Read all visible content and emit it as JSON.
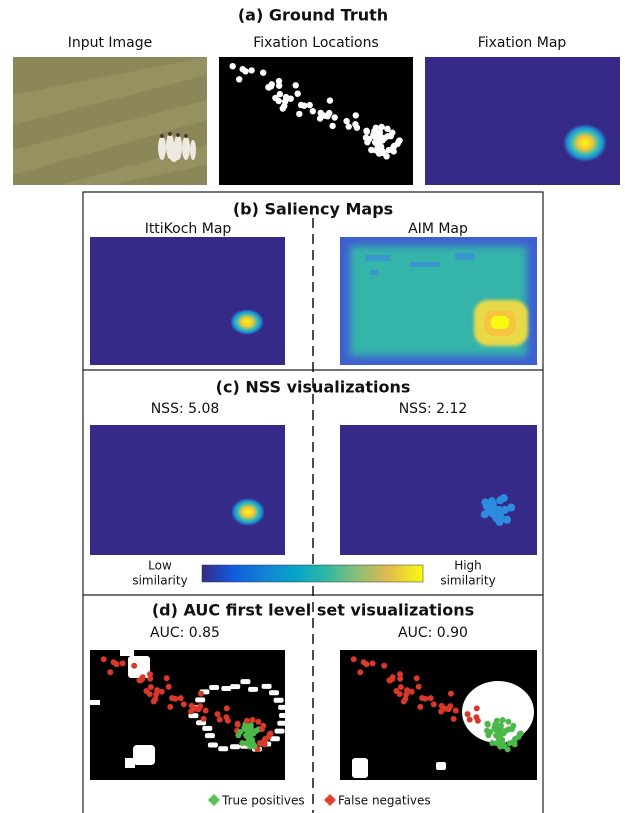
{
  "sections": [
    {
      "title": "(a) Ground Truth",
      "panels": [
        "Input Image",
        "Fixation Locations",
        "Fixation Map"
      ]
    },
    {
      "title": "(b) Saliency Maps",
      "panels": [
        "IttiKoch Map",
        "AIM Map"
      ]
    },
    {
      "title": "(c) NSS visualizations",
      "panels": [
        "NSS: 5.08",
        "NSS: 2.12"
      ],
      "colorbar": {
        "low": [
          "Low",
          "similarity"
        ],
        "high": [
          "High",
          "similarity"
        ]
      }
    },
    {
      "title": "(d) AUC first level set visualizations",
      "panels": [
        "AUC: 0.85",
        "AUC: 0.90"
      ],
      "legend": [
        "True positives",
        "False negatives"
      ]
    }
  ]
}
